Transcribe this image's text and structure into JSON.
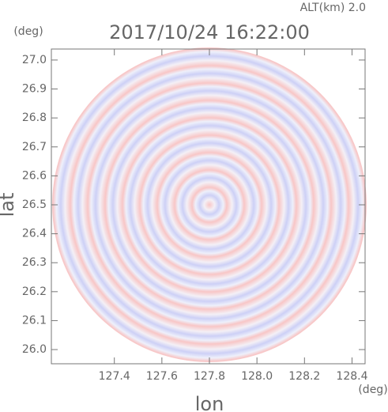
{
  "chart_data": {
    "type": "ppi",
    "title": "2017/10/24 16:22:00",
    "subtitle": "ALT(km) 2.0",
    "x_label": "lon",
    "x_unit": "(deg)",
    "y_label": "lat",
    "y_unit": "(deg)",
    "center": [
      127.8,
      26.5
    ],
    "xlim": [
      127.135,
      128.455
    ],
    "ylim": [
      25.951,
      27.038
    ],
    "xticks": [
      127.4,
      127.6,
      {
        "value": 127.8,
        "label": "127.8"
      },
      {
        "value": 128.0,
        "label": "128.0"
      },
      128.2,
      128.4
    ],
    "yticks": [
      {
        "value": 26.0,
        "label": "26.0"
      },
      26.1,
      26.2,
      26.3,
      26.4,
      26.5,
      26.6,
      26.7,
      26.8,
      26.9,
      {
        "value": 27.0,
        "label": "27.0"
      }
    ]
  }
}
